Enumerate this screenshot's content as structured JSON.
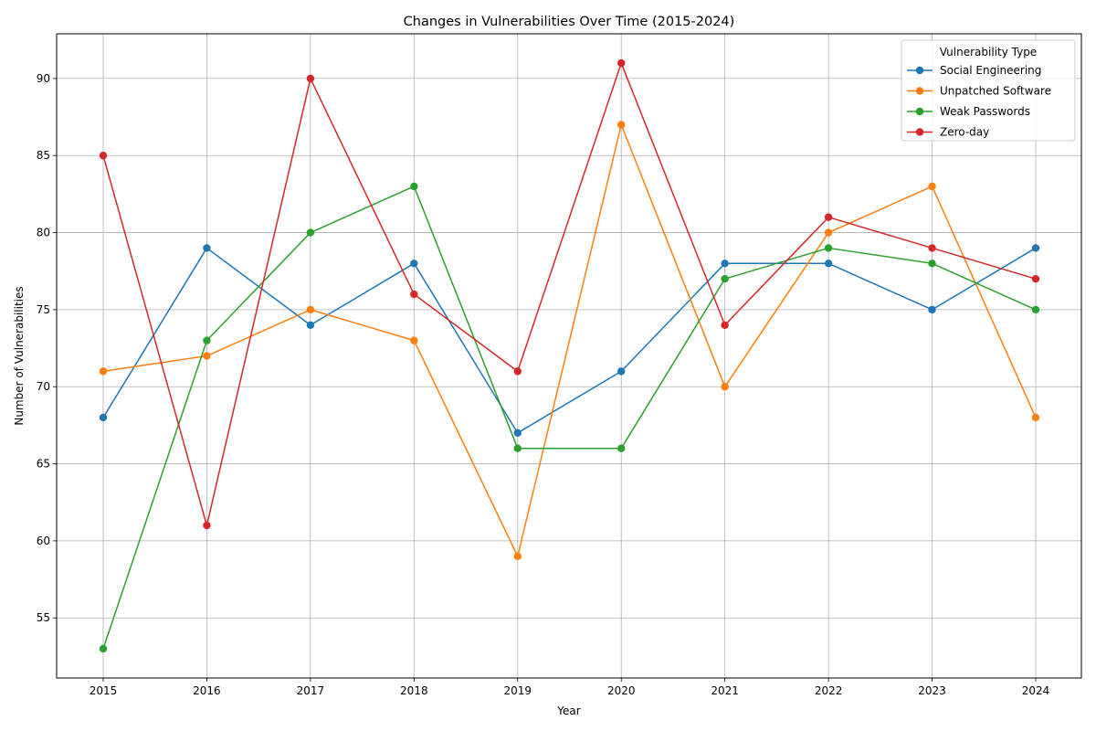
{
  "chart_data": {
    "type": "line",
    "title": "Changes in Vulnerabilities Over Time (2015-2024)",
    "xlabel": "Year",
    "ylabel": "Number of Vulnerabilities",
    "x": [
      2015,
      2016,
      2017,
      2018,
      2019,
      2020,
      2021,
      2022,
      2023,
      2024
    ],
    "x_tick_labels": [
      "2015",
      "2016",
      "2017",
      "2018",
      "2019",
      "2020",
      "2021",
      "2022",
      "2023",
      "2024"
    ],
    "ylim": [
      51.1,
      92.9
    ],
    "y_ticks": [
      55,
      60,
      65,
      70,
      75,
      80,
      85,
      90
    ],
    "y_tick_labels": [
      "55",
      "60",
      "65",
      "70",
      "75",
      "80",
      "85",
      "90"
    ],
    "grid": true,
    "legend": {
      "title": "Vulnerability Type",
      "placement": "top-right"
    },
    "series": [
      {
        "name": "Social Engineering",
        "color": "#1f77b4",
        "values": [
          68,
          79,
          74,
          78,
          67,
          71,
          78,
          78,
          75,
          79
        ]
      },
      {
        "name": "Unpatched Software",
        "color": "#ff7f0e",
        "values": [
          71,
          72,
          75,
          73,
          59,
          87,
          70,
          80,
          83,
          68
        ]
      },
      {
        "name": "Weak Passwords",
        "color": "#2ca02c",
        "values": [
          53,
          73,
          80,
          83,
          66,
          66,
          77,
          79,
          78,
          75
        ]
      },
      {
        "name": "Zero-day",
        "color": "#d62728",
        "values": [
          85,
          61,
          90,
          76,
          71,
          91,
          74,
          81,
          79,
          77
        ]
      }
    ]
  }
}
